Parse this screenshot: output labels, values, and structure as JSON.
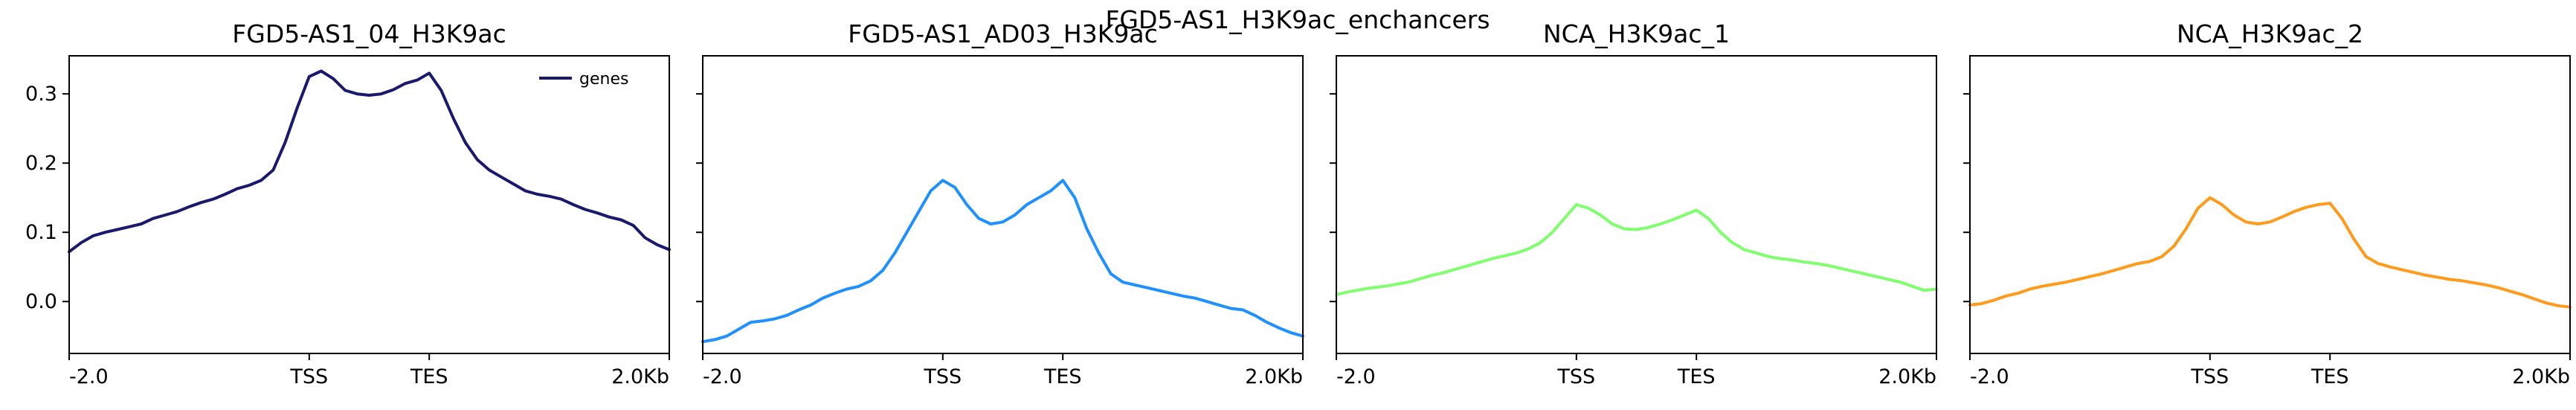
{
  "figure": {
    "title": "FGD5-AS1_H3K9ac_enchancers"
  },
  "chart_data": [
    {
      "type": "line",
      "title": "FGD5-AS1_04_H3K9ac",
      "color": "#191970",
      "x_tick_labels": [
        "-2.0",
        "TSS",
        "TES",
        "2.0Kb"
      ],
      "x_tick_positions": [
        0,
        0.4,
        0.6,
        1.0
      ],
      "y_ticks": [
        0.0,
        0.1,
        0.2,
        0.3
      ],
      "y_tick_labels": [
        "0.0",
        "0.1",
        "0.2",
        "0.3"
      ],
      "ylim": [
        -0.075,
        0.355
      ],
      "legend": {
        "label": "genes",
        "position": "upper-right"
      },
      "series": [
        {
          "name": "genes",
          "x": [
            0,
            0.02,
            0.04,
            0.06,
            0.08,
            0.1,
            0.12,
            0.14,
            0.16,
            0.18,
            0.2,
            0.22,
            0.24,
            0.26,
            0.28,
            0.3,
            0.32,
            0.34,
            0.36,
            0.38,
            0.4,
            0.42,
            0.44,
            0.46,
            0.48,
            0.5,
            0.52,
            0.54,
            0.56,
            0.58,
            0.6,
            0.62,
            0.64,
            0.66,
            0.68,
            0.7,
            0.72,
            0.74,
            0.76,
            0.78,
            0.8,
            0.82,
            0.84,
            0.86,
            0.88,
            0.9,
            0.92,
            0.94,
            0.96,
            0.98,
            1.0
          ],
          "values": [
            0.072,
            0.085,
            0.095,
            0.1,
            0.104,
            0.108,
            0.112,
            0.12,
            0.125,
            0.13,
            0.137,
            0.143,
            0.148,
            0.155,
            0.163,
            0.168,
            0.175,
            0.19,
            0.23,
            0.28,
            0.325,
            0.333,
            0.322,
            0.305,
            0.3,
            0.298,
            0.3,
            0.306,
            0.315,
            0.32,
            0.33,
            0.305,
            0.265,
            0.23,
            0.205,
            0.19,
            0.18,
            0.17,
            0.16,
            0.155,
            0.152,
            0.148,
            0.14,
            0.133,
            0.128,
            0.122,
            0.118,
            0.11,
            0.092,
            0.082,
            0.075
          ]
        }
      ]
    },
    {
      "type": "line",
      "title": "FGD5-AS1_AD03_H3K9ac",
      "color": "#1E90FF",
      "x_tick_labels": [
        "-2.0",
        "TSS",
        "TES",
        "2.0Kb"
      ],
      "x_tick_positions": [
        0,
        0.4,
        0.6,
        1.0
      ],
      "y_ticks": [
        0.0,
        0.1,
        0.2,
        0.3
      ],
      "y_tick_labels": [
        "",
        "",
        "",
        ""
      ],
      "ylim": [
        -0.075,
        0.355
      ],
      "series": [
        {
          "name": "",
          "x": [
            0,
            0.02,
            0.04,
            0.06,
            0.08,
            0.1,
            0.12,
            0.14,
            0.16,
            0.18,
            0.2,
            0.22,
            0.24,
            0.26,
            0.28,
            0.3,
            0.32,
            0.34,
            0.36,
            0.38,
            0.4,
            0.42,
            0.44,
            0.46,
            0.48,
            0.5,
            0.52,
            0.54,
            0.56,
            0.58,
            0.6,
            0.62,
            0.64,
            0.66,
            0.68,
            0.7,
            0.72,
            0.74,
            0.76,
            0.78,
            0.8,
            0.82,
            0.84,
            0.86,
            0.88,
            0.9,
            0.92,
            0.94,
            0.96,
            0.98,
            1.0
          ],
          "values": [
            -0.058,
            -0.055,
            -0.05,
            -0.04,
            -0.03,
            -0.028,
            -0.025,
            -0.02,
            -0.012,
            -0.005,
            0.005,
            0.012,
            0.018,
            0.022,
            0.03,
            0.045,
            0.07,
            0.1,
            0.13,
            0.16,
            0.175,
            0.165,
            0.14,
            0.12,
            0.112,
            0.115,
            0.125,
            0.14,
            0.15,
            0.16,
            0.175,
            0.15,
            0.105,
            0.07,
            0.04,
            0.028,
            0.024,
            0.02,
            0.016,
            0.012,
            0.008,
            0.005,
            0.0,
            -0.005,
            -0.01,
            -0.012,
            -0.02,
            -0.03,
            -0.038,
            -0.045,
            -0.05
          ]
        }
      ]
    },
    {
      "type": "line",
      "title": "NCA_H3K9ac_1",
      "color": "#80FF6E",
      "x_tick_labels": [
        "-2.0",
        "TSS",
        "TES",
        "2.0Kb"
      ],
      "x_tick_positions": [
        0,
        0.4,
        0.6,
        1.0
      ],
      "y_ticks": [
        0.0,
        0.1,
        0.2,
        0.3
      ],
      "y_tick_labels": [
        "",
        "",
        "",
        ""
      ],
      "ylim": [
        -0.075,
        0.355
      ],
      "series": [
        {
          "name": "",
          "x": [
            0,
            0.02,
            0.04,
            0.06,
            0.08,
            0.1,
            0.12,
            0.14,
            0.16,
            0.18,
            0.2,
            0.22,
            0.24,
            0.26,
            0.28,
            0.3,
            0.32,
            0.34,
            0.36,
            0.38,
            0.4,
            0.42,
            0.44,
            0.46,
            0.48,
            0.5,
            0.52,
            0.54,
            0.56,
            0.58,
            0.6,
            0.62,
            0.64,
            0.66,
            0.68,
            0.7,
            0.72,
            0.74,
            0.76,
            0.78,
            0.8,
            0.82,
            0.84,
            0.86,
            0.88,
            0.9,
            0.92,
            0.94,
            0.96,
            0.98,
            1.0
          ],
          "values": [
            0.01,
            0.014,
            0.017,
            0.02,
            0.022,
            0.025,
            0.028,
            0.033,
            0.038,
            0.042,
            0.047,
            0.052,
            0.057,
            0.062,
            0.066,
            0.07,
            0.076,
            0.085,
            0.1,
            0.12,
            0.14,
            0.135,
            0.125,
            0.112,
            0.105,
            0.104,
            0.107,
            0.112,
            0.118,
            0.125,
            0.132,
            0.12,
            0.1,
            0.085,
            0.075,
            0.07,
            0.065,
            0.062,
            0.06,
            0.057,
            0.055,
            0.052,
            0.048,
            0.044,
            0.04,
            0.036,
            0.032,
            0.028,
            0.022,
            0.016,
            0.018
          ]
        }
      ]
    },
    {
      "type": "line",
      "title": "NCA_H3K9ac_2",
      "color": "#FF9A1A",
      "x_tick_labels": [
        "-2.0",
        "TSS",
        "TES",
        "2.0Kb"
      ],
      "x_tick_positions": [
        0,
        0.4,
        0.6,
        1.0
      ],
      "y_ticks": [
        0.0,
        0.1,
        0.2,
        0.3
      ],
      "y_tick_labels": [
        "",
        "",
        "",
        ""
      ],
      "ylim": [
        -0.075,
        0.355
      ],
      "series": [
        {
          "name": "",
          "x": [
            0,
            0.02,
            0.04,
            0.06,
            0.08,
            0.1,
            0.12,
            0.14,
            0.16,
            0.18,
            0.2,
            0.22,
            0.24,
            0.26,
            0.28,
            0.3,
            0.32,
            0.34,
            0.36,
            0.38,
            0.4,
            0.42,
            0.44,
            0.46,
            0.48,
            0.5,
            0.52,
            0.54,
            0.56,
            0.58,
            0.6,
            0.62,
            0.64,
            0.66,
            0.68,
            0.7,
            0.72,
            0.74,
            0.76,
            0.78,
            0.8,
            0.82,
            0.84,
            0.86,
            0.88,
            0.9,
            0.92,
            0.94,
            0.96,
            0.98,
            1.0
          ],
          "values": [
            -0.005,
            -0.003,
            0.002,
            0.008,
            0.012,
            0.018,
            0.022,
            0.025,
            0.028,
            0.032,
            0.036,
            0.04,
            0.045,
            0.05,
            0.055,
            0.058,
            0.065,
            0.08,
            0.105,
            0.135,
            0.15,
            0.14,
            0.125,
            0.115,
            0.112,
            0.115,
            0.122,
            0.13,
            0.136,
            0.14,
            0.142,
            0.12,
            0.09,
            0.065,
            0.055,
            0.05,
            0.046,
            0.042,
            0.038,
            0.035,
            0.032,
            0.03,
            0.027,
            0.024,
            0.02,
            0.015,
            0.01,
            0.004,
            -0.002,
            -0.006,
            -0.008
          ]
        }
      ]
    }
  ]
}
